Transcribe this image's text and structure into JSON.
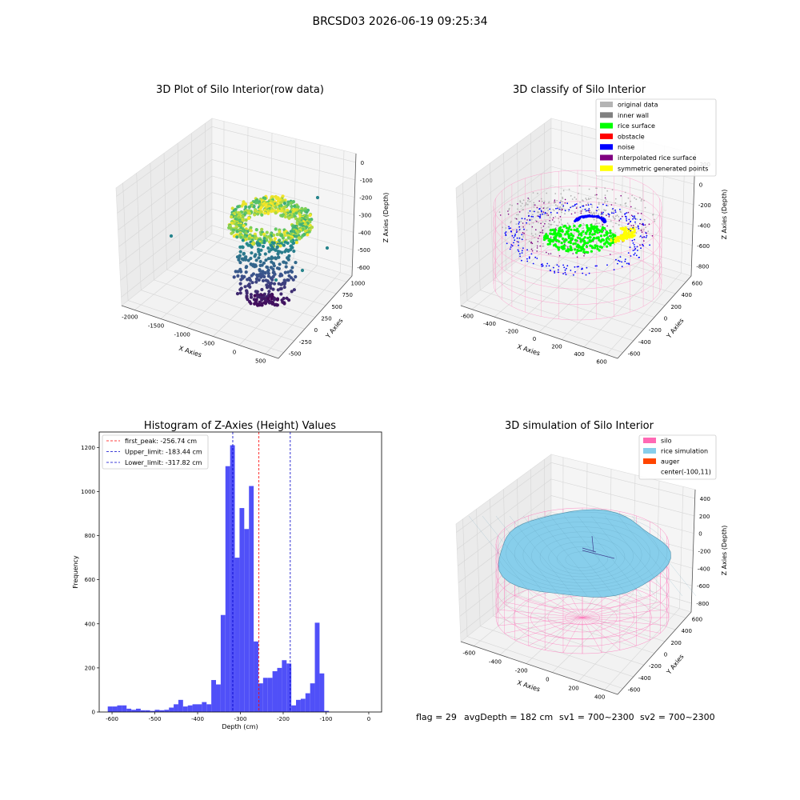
{
  "figure": {
    "suptitle": "BRCSD03 2026-06-19 09:25:34",
    "footer": {
      "flag": "flag = 29",
      "avg_depth": "avgDepth = 182 cm",
      "sv1": "sv1 = 700~2300",
      "sv2": "sv2 = 700~2300"
    }
  },
  "chart_data": [
    {
      "type": "scatter",
      "title": "3D Plot of Silo Interior(row data)",
      "xlabel": "X Axies",
      "ylabel": "Y Axies",
      "zlabel": "Z Axies (Depth)",
      "x_ticks": [
        "-2000",
        "-1500",
        "-1000",
        "-500",
        "0",
        "500"
      ],
      "y_ticks": [
        "-500",
        "-250",
        "0",
        "250",
        "500",
        "750",
        "1000"
      ],
      "z_ticks": [
        "0",
        "-100",
        "-200",
        "-300",
        "-400",
        "-500",
        "-600"
      ],
      "colormap": "viridis"
    },
    {
      "type": "scatter",
      "title": "3D classify of Silo Interior",
      "xlabel": "X Axies",
      "ylabel": "Y Axies",
      "zlabel": "Z Axies (Depth)",
      "x_ticks": [
        "-600",
        "-400",
        "-200",
        "0",
        "200",
        "400",
        "600"
      ],
      "y_ticks": [
        "-600",
        "-400",
        "-200",
        "0",
        "200",
        "400",
        "600"
      ],
      "z_ticks": [
        "200",
        "0",
        "-200",
        "-400",
        "-600",
        "-800"
      ],
      "legend": "top-right",
      "series": [
        {
          "name": "original data",
          "color": "#b4b4b4"
        },
        {
          "name": "inner wall",
          "color": "#808080"
        },
        {
          "name": "rice surface",
          "color": "#00ff00"
        },
        {
          "name": "obstacle",
          "color": "#ff0000"
        },
        {
          "name": "noise",
          "color": "#0000ff"
        },
        {
          "name": "interpolated rice surface",
          "color": "#800080"
        },
        {
          "name": "symmetric generated points",
          "color": "#ffff00"
        }
      ]
    },
    {
      "type": "bar",
      "title": "Histogram of Z-Axies (Height) Values",
      "xlabel": "Depth (cm)",
      "ylabel": "Frequency",
      "xlim": [
        -630,
        30
      ],
      "ylim": [
        0,
        1270
      ],
      "x_ticks": [
        -600,
        -500,
        -400,
        -300,
        -200,
        -100,
        0
      ],
      "y_ticks": [
        0,
        200,
        400,
        600,
        800,
        1000,
        1200
      ],
      "bin_start": -610,
      "bin_width": 11,
      "bar_color": "#5050f8",
      "values": [
        25,
        25,
        30,
        30,
        15,
        10,
        15,
        8,
        8,
        5,
        10,
        8,
        10,
        20,
        35,
        55,
        25,
        30,
        35,
        35,
        45,
        35,
        145,
        125,
        440,
        1115,
        1210,
        700,
        925,
        830,
        1025,
        320,
        130,
        155,
        155,
        185,
        200,
        235,
        220,
        30,
        55,
        60,
        85,
        130,
        405,
        175,
        5
      ],
      "legend": "top-left",
      "lines": [
        {
          "label": "first_peak: -256.74 cm",
          "value": -256.74,
          "color": "#ff0000"
        },
        {
          "label": "Upper_limit: -183.44 cm",
          "value": -183.44,
          "color": "#0000cc"
        },
        {
          "label": "Lower_limit: -317.82 cm",
          "value": -317.82,
          "color": "#0000cc"
        }
      ]
    },
    {
      "type": "area",
      "title": "3D simulation of Silo Interior",
      "xlabel": "X Axies",
      "ylabel": "Y Axies",
      "zlabel": "Z Axies (Depth)",
      "x_ticks": [
        "-600",
        "-400",
        "-200",
        "0",
        "200",
        "400"
      ],
      "y_ticks": [
        "-600",
        "-400",
        "-200",
        "0",
        "200",
        "400",
        "600"
      ],
      "z_ticks": [
        "400",
        "200",
        "0",
        "-200",
        "-400",
        "-600",
        "-800"
      ],
      "legend": "top-right",
      "series": [
        {
          "name": "silo",
          "color": "#ff69b4"
        },
        {
          "name": "rice simulation",
          "color": "#87ceeb"
        },
        {
          "name": "auger",
          "color": "#ff4500"
        },
        {
          "name": "center(-100,11)",
          "color": ""
        }
      ]
    }
  ]
}
